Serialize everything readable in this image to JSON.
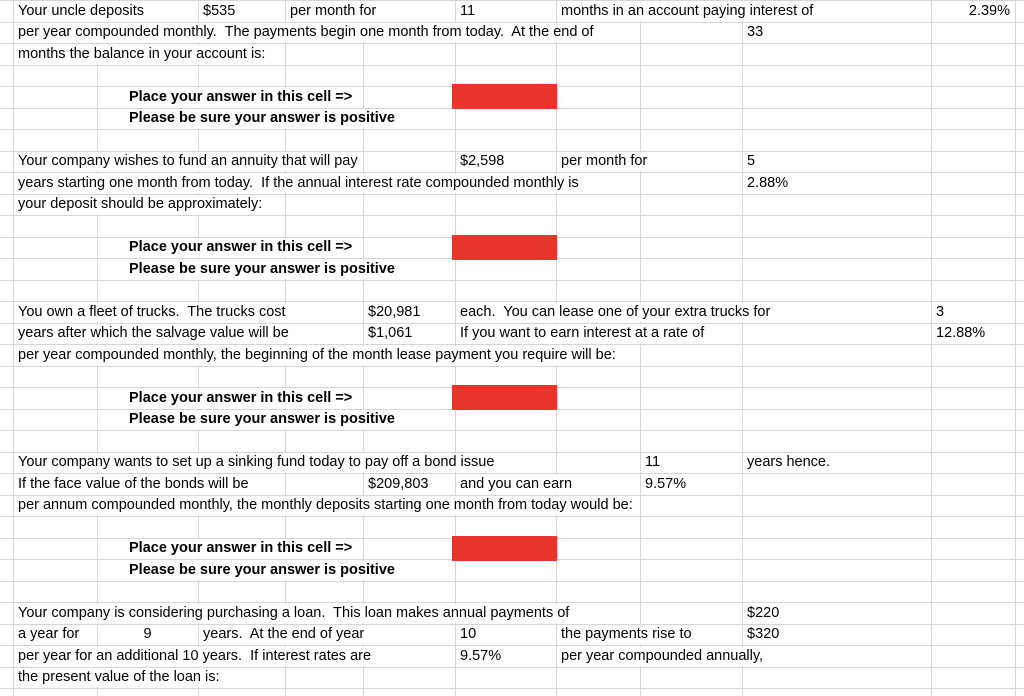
{
  "sheet": {
    "gridline_color": "#d6d6d6",
    "answer_fill_color": "#e8342b",
    "text_color": "#000000",
    "rows": [
      {
        "r": 1,
        "cells": [
          {
            "c": "B",
            "t": "Your uncle deposits"
          },
          {
            "c": "D",
            "t": "$535"
          },
          {
            "c": "E",
            "t": "per month for"
          },
          {
            "c": "G",
            "t": "11"
          },
          {
            "c": "H",
            "t": "months in an account paying interest of"
          },
          {
            "c": "K",
            "t": "2.39%",
            "align": "right"
          }
        ]
      },
      {
        "r": 2,
        "cells": [
          {
            "c": "B",
            "t": "per year compounded monthly.  The payments begin one month from today.  At the end of"
          },
          {
            "c": "J",
            "t": "33"
          }
        ]
      },
      {
        "r": 3,
        "cells": [
          {
            "c": "B",
            "t": "months the balance in your account is:"
          }
        ]
      },
      {
        "r": 5,
        "cells": [
          {
            "c": "C",
            "t": "Place your answer in this cell =>",
            "bold": true,
            "indent": 27
          },
          {
            "c": "G",
            "red": true
          }
        ]
      },
      {
        "r": 6,
        "cells": [
          {
            "c": "C",
            "t": "Please be sure your answer is positive",
            "bold": true,
            "indent": 27
          }
        ]
      },
      {
        "r": 8,
        "cells": [
          {
            "c": "B",
            "t": "Your company wishes to fund an annuity that will pay"
          },
          {
            "c": "G",
            "t": "$2,598"
          },
          {
            "c": "H",
            "t": "per month for"
          },
          {
            "c": "J",
            "t": "5"
          }
        ]
      },
      {
        "r": 9,
        "cells": [
          {
            "c": "B",
            "t": "years starting one month from today.  If the annual interest rate compounded monthly is"
          },
          {
            "c": "J",
            "t": "2.88%"
          }
        ]
      },
      {
        "r": 10,
        "cells": [
          {
            "c": "B",
            "t": "your deposit should be approximately:"
          }
        ]
      },
      {
        "r": 12,
        "cells": [
          {
            "c": "C",
            "t": "Place your answer in this cell =>",
            "bold": true,
            "indent": 27
          },
          {
            "c": "G",
            "red": true
          }
        ]
      },
      {
        "r": 13,
        "cells": [
          {
            "c": "C",
            "t": "Please be sure your answer is positive",
            "bold": true,
            "indent": 27
          }
        ]
      },
      {
        "r": 15,
        "cells": [
          {
            "c": "B",
            "t": "You own a fleet of trucks.  The trucks cost"
          },
          {
            "c": "F",
            "t": "$20,981"
          },
          {
            "c": "G",
            "t": "each.  You can lease one of your extra trucks for"
          },
          {
            "c": "K",
            "t": "3"
          }
        ]
      },
      {
        "r": 16,
        "cells": [
          {
            "c": "B",
            "t": "years after which the salvage value will be"
          },
          {
            "c": "F",
            "t": "$1,061"
          },
          {
            "c": "G",
            "t": "If you want to earn interest at a rate of"
          },
          {
            "c": "K",
            "t": "12.88%"
          }
        ]
      },
      {
        "r": 17,
        "cells": [
          {
            "c": "B",
            "t": "per year compounded monthly, the beginning of the month lease payment you require will be:"
          }
        ]
      },
      {
        "r": 19,
        "cells": [
          {
            "c": "C",
            "t": "Place your answer in this cell =>",
            "bold": true,
            "indent": 27
          },
          {
            "c": "G",
            "red": true
          }
        ]
      },
      {
        "r": 20,
        "cells": [
          {
            "c": "C",
            "t": "Please be sure your answer is positive",
            "bold": true,
            "indent": 27
          }
        ]
      },
      {
        "r": 22,
        "cells": [
          {
            "c": "B",
            "t": "Your company wants to set up a sinking fund today to pay off a bond issue"
          },
          {
            "c": "I",
            "t": "11"
          },
          {
            "c": "J",
            "t": "years hence."
          }
        ]
      },
      {
        "r": 23,
        "cells": [
          {
            "c": "B",
            "t": "If the face value of the bonds will be"
          },
          {
            "c": "F",
            "t": "$209,803"
          },
          {
            "c": "G",
            "t": "and you can earn"
          },
          {
            "c": "I",
            "t": "9.57%"
          }
        ]
      },
      {
        "r": 24,
        "cells": [
          {
            "c": "B",
            "t": "per annum compounded monthly, the monthly deposits starting one month from today would be:"
          }
        ]
      },
      {
        "r": 26,
        "cells": [
          {
            "c": "C",
            "t": "Place your answer in this cell =>",
            "bold": true,
            "indent": 27
          },
          {
            "c": "G",
            "red": true
          }
        ]
      },
      {
        "r": 27,
        "cells": [
          {
            "c": "C",
            "t": "Please be sure your answer is positive",
            "bold": true,
            "indent": 27
          }
        ]
      },
      {
        "r": 29,
        "cells": [
          {
            "c": "B",
            "t": "Your company is considering purchasing a loan.  This loan makes annual payments of"
          },
          {
            "c": "J",
            "t": "$220"
          }
        ]
      },
      {
        "r": 30,
        "cells": [
          {
            "c": "B",
            "t": "a year for"
          },
          {
            "c": "C",
            "t": "9",
            "align": "center"
          },
          {
            "c": "D",
            "t": "years.  At the end of year"
          },
          {
            "c": "G",
            "t": "10"
          },
          {
            "c": "H",
            "t": "the payments rise to"
          },
          {
            "c": "J",
            "t": "$320"
          }
        ]
      },
      {
        "r": 31,
        "cells": [
          {
            "c": "B",
            "t": "per year for an additional 10 years.  If interest rates are"
          },
          {
            "c": "G",
            "t": "9.57%"
          },
          {
            "c": "H",
            "t": "per year compounded annually,"
          }
        ]
      },
      {
        "r": 32,
        "cells": [
          {
            "c": "B",
            "t": "the present value of the loan is:"
          }
        ]
      }
    ]
  }
}
